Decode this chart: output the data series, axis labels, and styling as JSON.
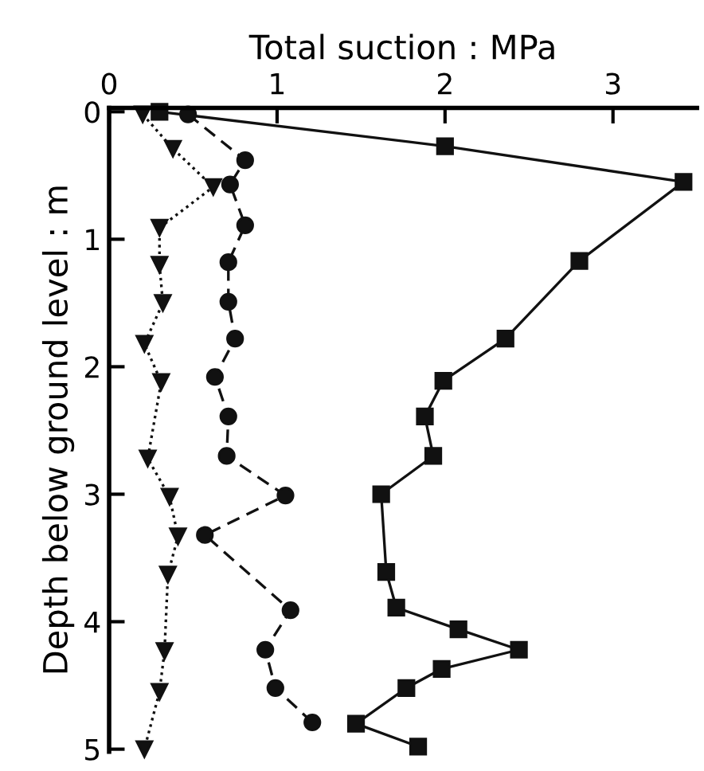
{
  "chart_data": {
    "type": "line",
    "xlabel": "Total suction : MPa",
    "ylabel": "Depth below ground level : m",
    "xlim": [
      0,
      3.5
    ],
    "xticks": [
      0,
      1,
      2,
      3
    ],
    "ylim": [
      5.02,
      -0.03
    ],
    "yticks": [
      0,
      1,
      2,
      3,
      4,
      5
    ],
    "grid": false,
    "series": [
      {
        "color": "#111111",
        "marker": "square",
        "line_style": "solid",
        "x": [
          0.3,
          2.0,
          3.42,
          2.8,
          2.36,
          1.99,
          1.88,
          1.93,
          1.62,
          1.65,
          1.71,
          2.08,
          2.44,
          1.98,
          1.77,
          1.47,
          1.84
        ],
        "values": [
          0,
          0.27,
          0.55,
          1.17,
          1.78,
          2.11,
          2.39,
          2.7,
          3.0,
          3.61,
          3.89,
          4.06,
          4.22,
          4.37,
          4.52,
          4.8,
          4.98
        ]
      },
      {
        "color": "#111111",
        "marker": "circle",
        "line_style": "dashed",
        "x": [
          0.47,
          0.81,
          0.72,
          0.81,
          0.71,
          0.71,
          0.75,
          0.63,
          0.71,
          0.7,
          1.05,
          0.57,
          1.08,
          0.93,
          0.99,
          1.21
        ],
        "values": [
          0.02,
          0.38,
          0.57,
          0.89,
          1.18,
          1.49,
          1.78,
          2.08,
          2.39,
          2.7,
          3.01,
          3.32,
          3.91,
          4.22,
          4.52,
          4.79
        ]
      },
      {
        "color": "#111111",
        "marker": "triangle",
        "line_style": "dotted",
        "x": [
          0.2,
          0.38,
          0.62,
          0.3,
          0.3,
          0.32,
          0.21,
          0.31,
          0.23,
          0.36,
          0.41,
          0.35,
          0.33,
          0.3,
          0.21
        ],
        "values": [
          0.02,
          0.29,
          0.59,
          0.91,
          1.2,
          1.5,
          1.82,
          2.12,
          2.72,
          3.02,
          3.33,
          3.63,
          4.23,
          4.55,
          5.0
        ]
      }
    ]
  }
}
